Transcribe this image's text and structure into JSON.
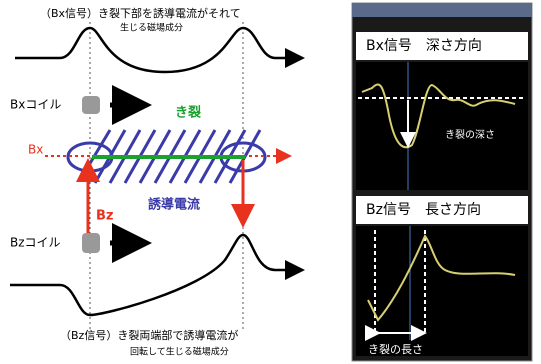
{
  "left": {
    "bx_signal": [
      "（Bx信号）き裂下部を誘導電流がそれて",
      "生じる磁場成分"
    ],
    "bx_coil": "Bxコイル",
    "crack": "き裂",
    "bx": "Bx",
    "bz": "Bz",
    "induced_current": "誘導電流",
    "bz_coil": "Bzコイル",
    "bz_signal": [
      "（Bz信号）き裂両端部で誘導電流が",
      "回転して生じる磁場成分"
    ]
  },
  "right": {
    "bx_panel": {
      "title": "Bx信号　深さ方向",
      "annotation": "き裂の深さ"
    },
    "bz_panel": {
      "title": "Bz信号　長さ方向",
      "annotation": "き裂の長さ"
    }
  }
}
